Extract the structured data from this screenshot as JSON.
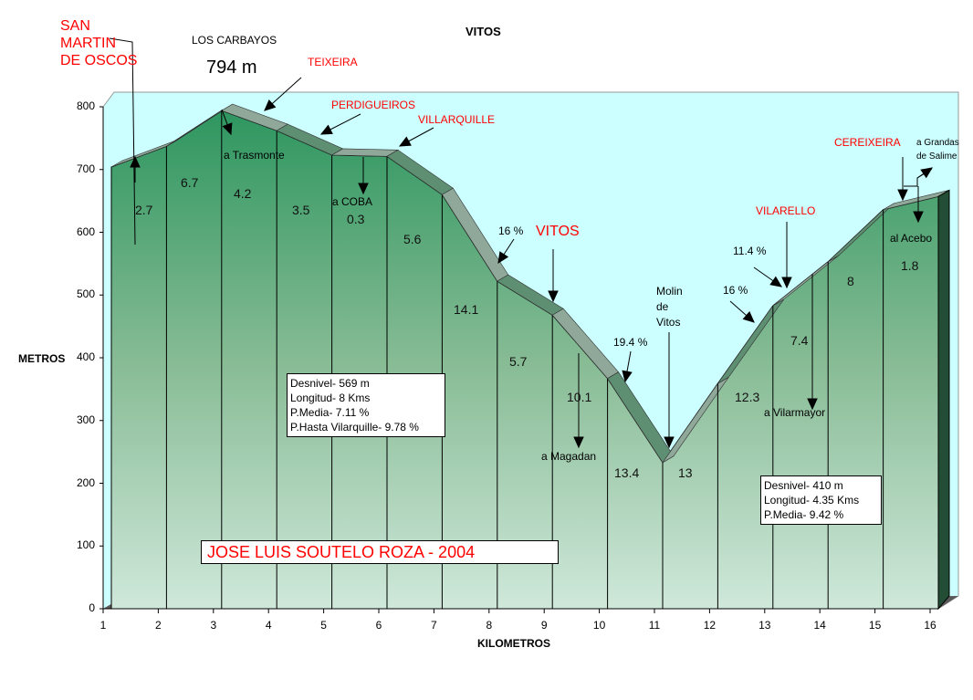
{
  "chart_data": {
    "type": "area",
    "title": "VITOS",
    "xlabel": "KILOMETROS",
    "ylabel": "METROS",
    "xlim": [
      1,
      16
    ],
    "ylim": [
      0,
      800
    ],
    "x_ticks": [
      "1",
      "2",
      "3",
      "4",
      "5",
      "6",
      "7",
      "8",
      "9",
      "10",
      "11",
      "12",
      "13",
      "14",
      "15",
      "16"
    ],
    "y_ticks": [
      "0",
      "100",
      "200",
      "300",
      "400",
      "500",
      "600",
      "700",
      "800"
    ],
    "x": [
      1,
      2,
      3,
      4,
      5,
      6,
      7,
      8,
      9,
      10,
      11,
      12,
      13,
      14,
      15,
      16
    ],
    "elevation_m": [
      704,
      737,
      794,
      762,
      723,
      721,
      660,
      522,
      468,
      367,
      233,
      359,
      483,
      553,
      636,
      657
    ],
    "segment_grades_pct": [
      "2.7",
      "6.7",
      "4.2",
      "3.5",
      "0.3",
      "5.6",
      "14.1",
      "5.7",
      "10.1",
      "13.4",
      "13",
      "12.3",
      "7.4",
      "8",
      "1.8"
    ],
    "annotations": {
      "san_martin": "SAN\nMARTIN\nDE OSCOS",
      "carbayos": "LOS CARBAYOS",
      "carbayos_alt": "794 m",
      "teixeira": "TEIXEIRA",
      "perdigueiros": "PERDIGUEIROS",
      "villarquille": "VILLARQUILLE",
      "trasmonte": "a Trasmonte",
      "coba": "a COBA",
      "pct16a": "16 %",
      "vitos": "VITOS",
      "magadan": "a Magadan",
      "pct194": "19.4 %",
      "molin": "Molin\nde\nVitos",
      "pct16b": "16 %",
      "pct114": "11.4 %",
      "vilarello": "VILARELLO",
      "vilarmayor": "a Vilarmayor",
      "cereixeira": "CEREIXEIRA",
      "grandas": "a Grandas\nde Salime",
      "acebo": "al Acebo"
    },
    "box1": [
      "Desnivel- 569 m",
      "Longitud- 8 Kms",
      "P.Media- 7.11 %",
      "P.Hasta Vilarquille- 9.78 %"
    ],
    "box2": [
      "Desnivel- 410 m",
      "Longitud- 4.35 Kms",
      "P.Media- 9.42 %"
    ],
    "author": "JOSE LUIS SOUTELO ROZA - 2004"
  }
}
